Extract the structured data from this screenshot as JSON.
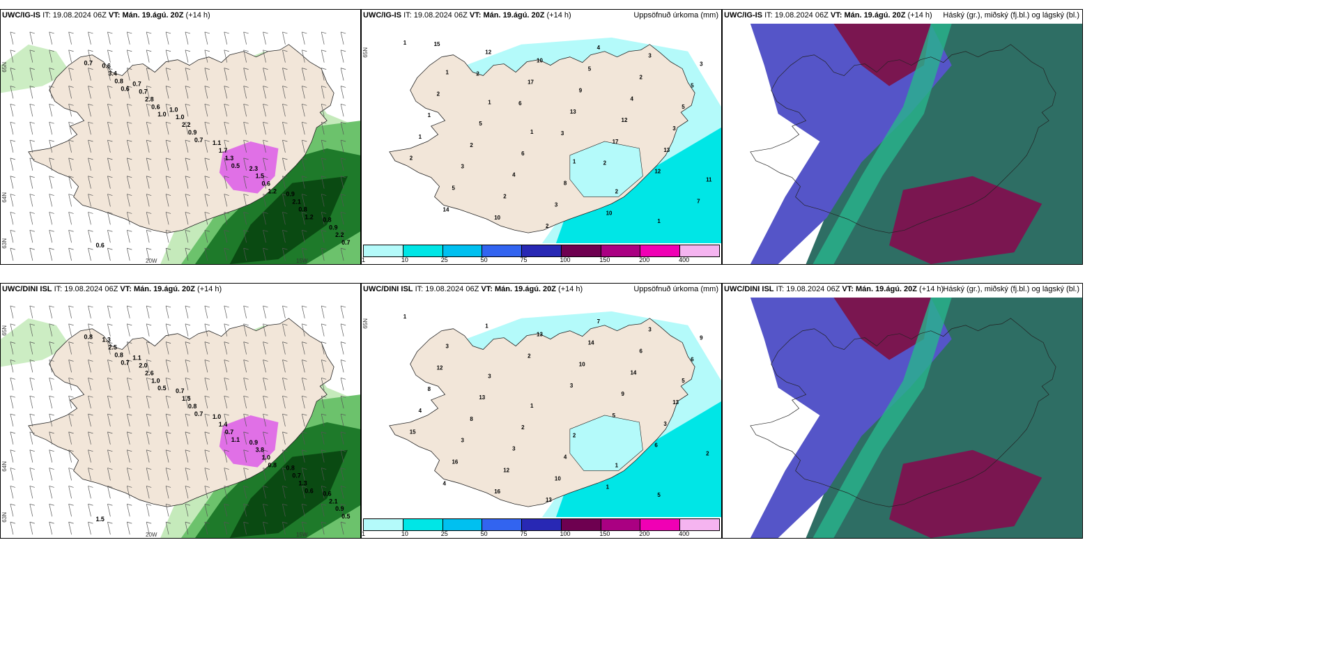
{
  "rows": [
    {
      "model": "UWC/IG-IS",
      "it_label": "IT:",
      "it_value": "19.08.2024 06Z",
      "vt_label": "VT:",
      "vt_value": "Mán. 19.ágú. 20Z",
      "lead": "(+14 h)",
      "wind_values": [
        "0.7",
        "0.6",
        "1.0",
        "0.7",
        "0.5",
        "1.2",
        "1.2",
        "0.7",
        "0.8",
        "0.6",
        "0.9",
        "1.3",
        "0.6",
        "0.8",
        "2.2",
        "3.4",
        "2.8",
        "2.2",
        "1.7",
        "1.5",
        "2.1",
        "0.9",
        "0.6",
        "0.7",
        "1.0",
        "1.1",
        "2.3",
        "0.9",
        "0.8",
        "0.6",
        "0.7",
        "1.0"
      ],
      "precip_values": [
        "1",
        "1",
        "1",
        "1",
        "1",
        "2",
        "1",
        "3",
        "2",
        "5",
        "6",
        "8",
        "10",
        "3",
        "5",
        "1",
        "2",
        "4",
        "3",
        "4",
        "2",
        "5",
        "1",
        "3",
        "2",
        "2",
        "5",
        "4",
        "3",
        "2",
        "5",
        "10",
        "10",
        "9",
        "12",
        "13",
        "11",
        "14",
        "12",
        "17",
        "13",
        "17",
        "12",
        "7",
        "15",
        "2",
        "6",
        "3",
        "2"
      ],
      "lat_labels": [
        "65N",
        "64N",
        "63N"
      ],
      "lon_labels": [
        "20W",
        "15W"
      ],
      "lat_labels_right": [
        "65N"
      ]
    },
    {
      "model": "UWC/DINI ISL",
      "it_label": "IT:",
      "it_value": "19.08.2024 06Z",
      "vt_label": "VT:",
      "vt_value": "Mán. 19.ágú. 20Z",
      "lead": "(+14 h)",
      "wind_values": [
        "0.8",
        "0.7",
        "0.5",
        "0.7",
        "1.1",
        "0.8",
        "0.6",
        "0.5",
        "0.8",
        "1.0",
        "0.8",
        "0.7",
        "1.0",
        "1.3",
        "0.9",
        "2.5",
        "2.6",
        "1.5",
        "1.4",
        "3.8",
        "0.7",
        "2.1",
        "1.3",
        "2.0",
        "0.7",
        "1.0",
        "0.9",
        "0.8",
        "0.6",
        "1.5",
        "1.1"
      ],
      "precip_values": [
        "1",
        "3",
        "3",
        "1",
        "2",
        "1",
        "5",
        "9",
        "12",
        "13",
        "2",
        "4",
        "1",
        "3",
        "6",
        "8",
        "8",
        "3",
        "10",
        "7",
        "6",
        "5",
        "4",
        "3",
        "12",
        "13",
        "14",
        "14",
        "13",
        "15",
        "16",
        "16",
        "13",
        "10",
        "9",
        "3",
        "2",
        "4",
        "1",
        "2",
        "3",
        "5",
        "6"
      ],
      "lat_labels": [
        "65N",
        "64N",
        "63N"
      ],
      "lon_labels": [
        "20W",
        "15W"
      ],
      "lat_labels_right": [
        "65N"
      ]
    }
  ],
  "precip_title": "Uppsöfnuð úrkoma (mm)",
  "cloud_title": "Háský (gr.), miðský (fj.bl.) og lágský (bl.)",
  "colorbar": {
    "labels": [
      "1",
      "10",
      "25",
      "50",
      "75",
      "100",
      "150",
      "200",
      "400"
    ],
    "colors": [
      "#b4fafa",
      "#00e6e6",
      "#00c0f0",
      "#3264f0",
      "#2828b4",
      "#6e0050",
      "#aa0082",
      "#f000b4",
      "#f5b4f0"
    ]
  },
  "colors": {
    "land": "#f2e6d9",
    "green_light": "#bfe8b4",
    "green_mid": "#6cc26c",
    "green_dark": "#1e7a2a",
    "green_darkest": "#0a4a12",
    "magenta": "#e070e6",
    "cyan_light": "#b4fafa",
    "cyan": "#00e6e6",
    "cloud_high": "#7a1650",
    "cloud_mid": "#5555c8",
    "cloud_low": "#2e6e64",
    "cloud_teal": "#28b48c"
  }
}
